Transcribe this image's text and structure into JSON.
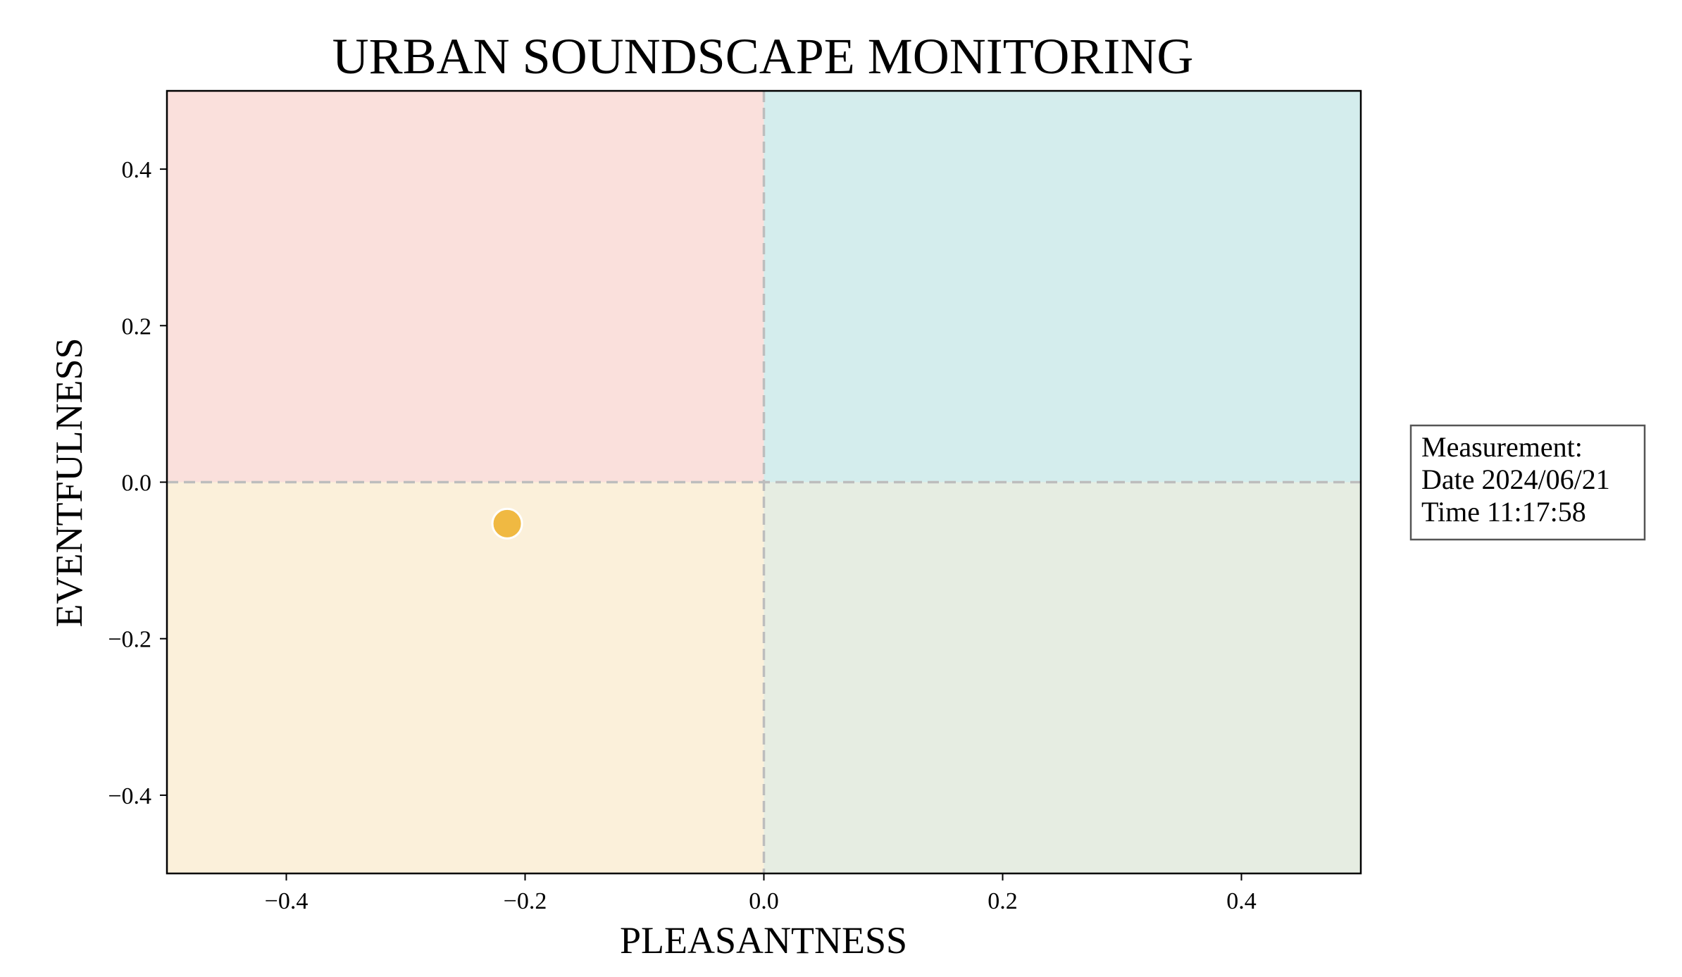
{
  "chart_data": {
    "type": "scatter",
    "title": "URBAN SOUNDSCAPE MONITORING",
    "xlabel": "PLEASANTNESS",
    "ylabel": "EVENTFULNESS",
    "xlim": [
      -0.5,
      0.5
    ],
    "ylim": [
      -0.5,
      0.5
    ],
    "xticks": [
      -0.4,
      -0.2,
      0.0,
      0.2,
      0.4
    ],
    "yticks": [
      -0.4,
      -0.2,
      0.0,
      0.2,
      0.4
    ],
    "xtick_labels": [
      "−0.4",
      "−0.2",
      "0.0",
      "0.2",
      "0.4"
    ],
    "ytick_labels": [
      "−0.4",
      "−0.2",
      "0.0",
      "0.2",
      "0.4"
    ],
    "grid": false,
    "reference_lines": {
      "x": 0.0,
      "y": 0.0,
      "style": "dashed",
      "color": "#bdbdbd"
    },
    "quadrants": [
      {
        "id": "top-left",
        "x": [
          -0.5,
          0.0
        ],
        "y": [
          0.0,
          0.5
        ],
        "color": "#fae0dc"
      },
      {
        "id": "top-right",
        "x": [
          0.0,
          0.5
        ],
        "y": [
          0.0,
          0.5
        ],
        "color": "#d4eded"
      },
      {
        "id": "bottom-left",
        "x": [
          -0.5,
          0.0
        ],
        "y": [
          -0.5,
          0.0
        ],
        "color": "#fbf0da"
      },
      {
        "id": "bottom-right",
        "x": [
          0.0,
          0.5
        ],
        "y": [
          -0.5,
          0.0
        ],
        "color": "#e6ede2"
      }
    ],
    "points": [
      {
        "x": -0.215,
        "y": -0.053,
        "color": "#f0b942",
        "edgecolor": "#ffffff"
      }
    ],
    "annotation": {
      "lines": [
        "Measurement:",
        "Date 2024/06/21",
        "Time 11:17:58"
      ],
      "placement": "right-middle"
    }
  }
}
